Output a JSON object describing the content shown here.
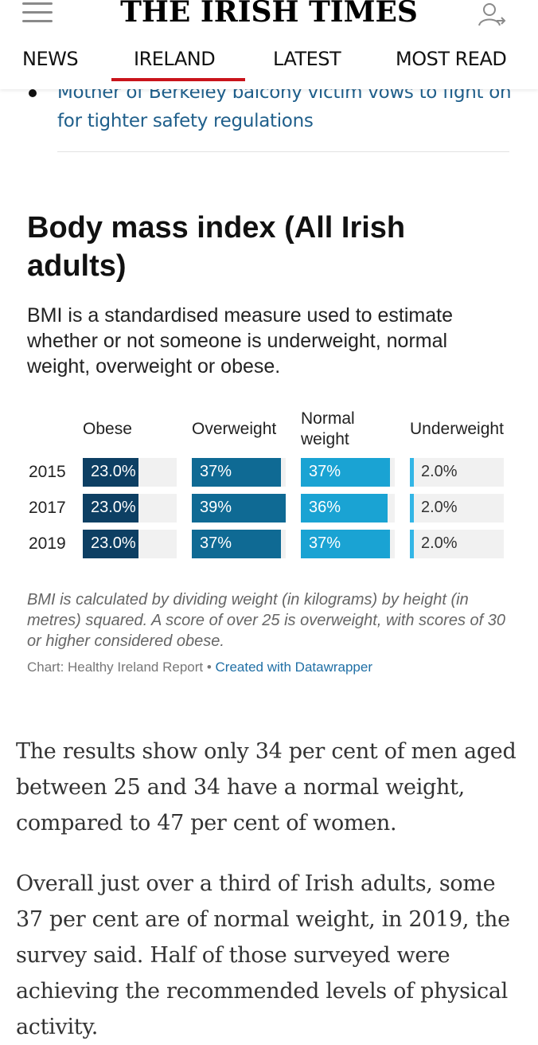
{
  "header": {
    "logo": "THE IRISH TIMES",
    "nav": [
      "NEWS",
      "IRELAND",
      "LATEST",
      "MOST READ"
    ],
    "active_nav": "IRELAND",
    "accent_color": "#c9141b"
  },
  "related": {
    "link_text": "Mother of Berkeley balcony victim vows to fight on for tighter safety regulations"
  },
  "chart": {
    "title": "Body mass index (All Irish adults)",
    "description": "BMI is a standardised measure used to estimate whether or not someone is underweight, normal weight, overweight or obese.",
    "columns": [
      "Obese",
      "Overweight",
      "Normal weight",
      "Underweight"
    ],
    "note": "BMI is calculated by dividing weight (in kilograms) by height (in metres) squared. A score of over 25 is overweight, with scores of 30 or higher considered obese.",
    "source_prefix": "Chart: Healthy Ireland Report • ",
    "source_link": "Created with Datawrapper"
  },
  "chart_data": {
    "type": "table",
    "columns": [
      "Obese",
      "Overweight",
      "Normal weight",
      "Underweight"
    ],
    "rows": [
      {
        "year": "2015",
        "labels": [
          "23.0%",
          "37%",
          "37%",
          "2.0%"
        ],
        "values": [
          23.0,
          37,
          37,
          2.0
        ]
      },
      {
        "year": "2017",
        "labels": [
          "23.0%",
          "39%",
          "36%",
          "2.0%"
        ],
        "values": [
          23.0,
          39,
          36,
          2.0
        ]
      },
      {
        "year": "2019",
        "labels": [
          "23.0%",
          "37%",
          "37%",
          "2.0%"
        ],
        "values": [
          23.0,
          37,
          37,
          2.0
        ]
      }
    ],
    "colors": [
      "#0d3f63",
      "#0f6a94",
      "#1aa3d3",
      "#33b6e6"
    ]
  },
  "article": {
    "para1": "The results show only 34 per cent of men aged between 25 and 34 have a normal weight, compared to 47 per cent of women.",
    "para2": "Overall just over a third of Irish adults, some 37 per cent are of normal weight, in 2019, the survey said. Half of those surveyed were achieving the recommended levels of physical activity."
  }
}
